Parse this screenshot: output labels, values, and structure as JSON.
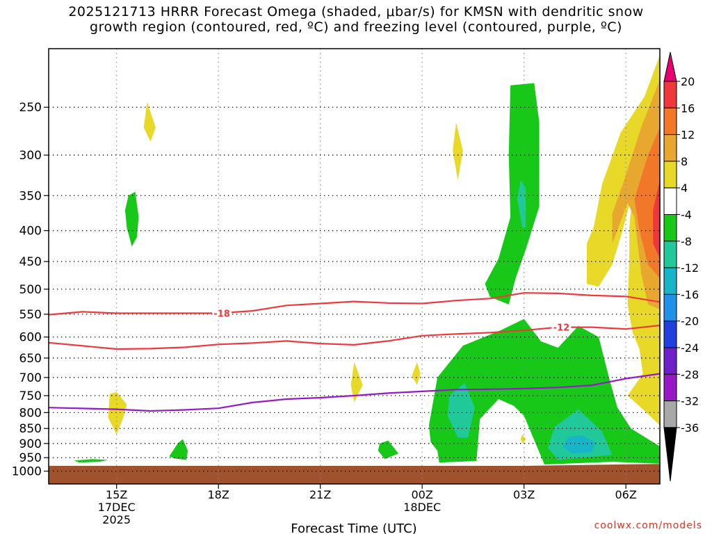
{
  "header": {
    "title_line1": "2025121713 HRRR Forecast Omega (shaded, μbar/s) for KMSN with dendritic snow",
    "title_line2": "growth region (contoured, red, ºC) and freezing level (contoured, purple, ºC)"
  },
  "footer": {
    "credit": "coolwx.com/models"
  },
  "chart_data": {
    "type": "time-height cross-section",
    "title": "2025121713 HRRR Forecast Omega (shaded, μbar/s) for KMSN with dendritic snow growth region (contoured, red, ºC) and freezing level (contoured, purple, ºC)",
    "xlabel": "Forecast Time (UTC)",
    "ylabel": "",
    "x_range_hours": [
      13,
      31
    ],
    "x_ticks": [
      {
        "hour": 15,
        "label": "15Z",
        "sub1": "17DEC",
        "sub2": "2025"
      },
      {
        "hour": 18,
        "label": "18Z",
        "sub1": "",
        "sub2": ""
      },
      {
        "hour": 21,
        "label": "21Z",
        "sub1": "",
        "sub2": ""
      },
      {
        "hour": 24,
        "label": "00Z",
        "sub1": "18DEC",
        "sub2": ""
      },
      {
        "hour": 27,
        "label": "03Z",
        "sub1": "",
        "sub2": ""
      },
      {
        "hour": 30,
        "label": "06Z",
        "sub1": "",
        "sub2": ""
      }
    ],
    "y_range_hpa": [
      1050,
      200
    ],
    "y_ticks": [
      250,
      300,
      350,
      400,
      450,
      500,
      550,
      600,
      650,
      700,
      750,
      800,
      850,
      900,
      950,
      1000
    ],
    "surface_hpa": [
      {
        "hour": 13,
        "p": 980
      },
      {
        "hour": 27,
        "p": 980
      },
      {
        "hour": 31,
        "p": 973
      }
    ],
    "colorbar": {
      "labels": [
        "20",
        "16",
        "12",
        "8",
        "4",
        "-4",
        "-8",
        "-12",
        "-16",
        "-20",
        "-24",
        "-28",
        "-32",
        "-36"
      ],
      "colors": [
        "#e8006e",
        "#f0383c",
        "#f07828",
        "#e8a830",
        "#e8d828",
        "#ffffff",
        "#18c818",
        "#20c89a",
        "#18b4c8",
        "#2090e8",
        "#2040e0",
        "#7020c8",
        "#9818c8",
        "#a8a8a8",
        "#000000"
      ]
    },
    "omega_regions": [
      {
        "name": "green-blob-a",
        "color": "#18c818",
        "pts": [
          [
            15.35,
            350
          ],
          [
            15.55,
            345
          ],
          [
            15.65,
            380
          ],
          [
            15.6,
            410
          ],
          [
            15.45,
            425
          ],
          [
            15.3,
            395
          ],
          [
            15.25,
            370
          ]
        ]
      },
      {
        "name": "yellow-blob-a",
        "color": "#e8d828",
        "pts": [
          [
            15.9,
            245
          ],
          [
            16.15,
            270
          ],
          [
            16.0,
            285
          ],
          [
            15.8,
            270
          ]
        ]
      },
      {
        "name": "yellow-blob-b",
        "color": "#e8d828",
        "pts": [
          [
            14.8,
            745
          ],
          [
            15.0,
            740
          ],
          [
            15.3,
            775
          ],
          [
            15.2,
            815
          ],
          [
            15.0,
            870
          ],
          [
            14.75,
            815
          ]
        ]
      },
      {
        "name": "green-blob-b",
        "color": "#18c818",
        "pts": [
          [
            13.75,
            960
          ],
          [
            14.3,
            955
          ],
          [
            14.75,
            958
          ],
          [
            14.5,
            965
          ],
          [
            13.9,
            968
          ]
        ]
      },
      {
        "name": "green-blob-c",
        "color": "#18c818",
        "pts": [
          [
            16.8,
            900
          ],
          [
            16.95,
            885
          ],
          [
            17.1,
            925
          ],
          [
            17.05,
            958
          ],
          [
            16.7,
            953
          ],
          [
            16.55,
            945
          ]
        ]
      },
      {
        "name": "yellow-blob-c",
        "color": "#e8d828",
        "pts": [
          [
            22.0,
            660
          ],
          [
            22.25,
            720
          ],
          [
            22.0,
            770
          ],
          [
            21.9,
            720
          ]
        ]
      },
      {
        "name": "green-blob-d",
        "color": "#18c818",
        "pts": [
          [
            22.75,
            900
          ],
          [
            23.0,
            890
          ],
          [
            23.3,
            935
          ],
          [
            22.9,
            955
          ],
          [
            22.7,
            925
          ]
        ]
      },
      {
        "name": "yellow-blob-d",
        "color": "#e8d828",
        "pts": [
          [
            23.85,
            660
          ],
          [
            23.95,
            690
          ],
          [
            23.85,
            720
          ],
          [
            23.7,
            695
          ]
        ]
      },
      {
        "name": "yellow-blob-e",
        "color": "#e8d828",
        "pts": [
          [
            25.0,
            265
          ],
          [
            25.2,
            295
          ],
          [
            25.05,
            330
          ],
          [
            24.9,
            295
          ]
        ]
      },
      {
        "name": "green-upper",
        "color": "#18c818",
        "pts": [
          [
            26.6,
            230
          ],
          [
            27.3,
            228
          ],
          [
            27.45,
            265
          ],
          [
            27.45,
            365
          ],
          [
            27.05,
            430
          ],
          [
            26.75,
            480
          ],
          [
            26.55,
            530
          ],
          [
            26.0,
            515
          ],
          [
            25.85,
            490
          ],
          [
            26.25,
            445
          ],
          [
            26.6,
            380
          ],
          [
            26.55,
            300
          ]
        ]
      },
      {
        "name": "teal-upper",
        "color": "#20c89a",
        "pts": [
          [
            26.9,
            330
          ],
          [
            27.05,
            340
          ],
          [
            27.05,
            395
          ],
          [
            26.95,
            395
          ],
          [
            26.8,
            355
          ]
        ]
      },
      {
        "name": "green-lower",
        "color": "#18c818",
        "pts": [
          [
            24.2,
            840
          ],
          [
            24.45,
            700
          ],
          [
            25.2,
            620
          ],
          [
            26.3,
            585
          ],
          [
            27.0,
            560
          ],
          [
            27.5,
            610
          ],
          [
            28.0,
            625
          ],
          [
            28.6,
            575
          ],
          [
            29.2,
            600
          ],
          [
            29.5,
            700
          ],
          [
            29.75,
            785
          ],
          [
            30.15,
            850
          ],
          [
            31.0,
            910
          ],
          [
            31.0,
            972
          ],
          [
            29.6,
            965
          ],
          [
            28.0,
            973
          ],
          [
            27.6,
            975
          ],
          [
            27.0,
            810
          ],
          [
            26.7,
            780
          ],
          [
            26.25,
            760
          ],
          [
            25.7,
            820
          ],
          [
            25.6,
            962
          ],
          [
            24.5,
            968
          ],
          [
            24.45,
            925
          ],
          [
            24.25,
            895
          ]
        ]
      },
      {
        "name": "teal-lower-a",
        "color": "#20c89a",
        "pts": [
          [
            24.8,
            750
          ],
          [
            25.25,
            715
          ],
          [
            25.55,
            785
          ],
          [
            25.35,
            880
          ],
          [
            25.05,
            880
          ],
          [
            24.75,
            810
          ]
        ]
      },
      {
        "name": "teal-lower-b",
        "color": "#20c89a",
        "pts": [
          [
            27.9,
            845
          ],
          [
            28.6,
            790
          ],
          [
            29.3,
            860
          ],
          [
            29.6,
            940
          ],
          [
            28.0,
            958
          ],
          [
            27.7,
            915
          ]
        ]
      },
      {
        "name": "blue-lower",
        "color": "#18b4c8",
        "pts": [
          [
            28.3,
            878
          ],
          [
            28.7,
            872
          ],
          [
            29.1,
            895
          ],
          [
            29.0,
            930
          ],
          [
            28.4,
            935
          ],
          [
            28.15,
            910
          ]
        ]
      },
      {
        "name": "yellow-tiny",
        "color": "#e8d828",
        "pts": [
          [
            26.95,
            870
          ],
          [
            27.05,
            885
          ],
          [
            26.97,
            902
          ],
          [
            26.9,
            885
          ]
        ]
      },
      {
        "name": "yellow-right",
        "color": "#e8d828",
        "pts": [
          [
            31.0,
            205
          ],
          [
            30.55,
            240
          ],
          [
            29.85,
            275
          ],
          [
            29.3,
            335
          ],
          [
            29.05,
            395
          ],
          [
            28.85,
            420
          ],
          [
            28.85,
            490
          ],
          [
            29.2,
            495
          ],
          [
            29.6,
            455
          ],
          [
            29.9,
            400
          ],
          [
            30.2,
            345
          ],
          [
            30.1,
            395
          ],
          [
            30.1,
            445
          ],
          [
            30.05,
            530
          ],
          [
            30.2,
            590
          ],
          [
            30.4,
            628
          ],
          [
            30.5,
            690
          ],
          [
            30.05,
            750
          ],
          [
            30.5,
            790
          ],
          [
            31.0,
            840
          ]
        ]
      },
      {
        "name": "gold-right",
        "color": "#e8a830",
        "pts": [
          [
            31.0,
            225
          ],
          [
            30.45,
            270
          ],
          [
            29.95,
            330
          ],
          [
            29.6,
            375
          ],
          [
            29.6,
            420
          ],
          [
            30.05,
            360
          ],
          [
            30.25,
            380
          ],
          [
            30.45,
            470
          ],
          [
            30.65,
            530
          ],
          [
            31.0,
            540
          ]
        ]
      },
      {
        "name": "orange-right",
        "color": "#f07828",
        "pts": [
          [
            31.0,
            270
          ],
          [
            30.65,
            300
          ],
          [
            30.25,
            355
          ],
          [
            30.4,
            400
          ],
          [
            30.65,
            455
          ],
          [
            31.0,
            480
          ]
        ]
      },
      {
        "name": "red-right",
        "color": "#f0383c",
        "pts": [
          [
            31.0,
            330
          ],
          [
            30.8,
            370
          ],
          [
            30.8,
            420
          ],
          [
            31.0,
            445
          ]
        ]
      }
    ],
    "contours": [
      {
        "name": "dendritic -18",
        "color": "#f0383c",
        "label": "-18",
        "label_at": [
          18.1,
          548
        ],
        "pts": [
          [
            13,
            551
          ],
          [
            14,
            545
          ],
          [
            15,
            548
          ],
          [
            17,
            548
          ],
          [
            18,
            548
          ],
          [
            19,
            543
          ],
          [
            20,
            532
          ],
          [
            21,
            528
          ],
          [
            22,
            524
          ],
          [
            23,
            527
          ],
          [
            24,
            528
          ],
          [
            25,
            522
          ],
          [
            26,
            518
          ],
          [
            27,
            507
          ],
          [
            28,
            508
          ],
          [
            29,
            512
          ],
          [
            30,
            514
          ],
          [
            31,
            525
          ]
        ]
      },
      {
        "name": "dendritic -12",
        "color": "#f0383c",
        "label": "-12",
        "label_at": [
          28.1,
          578
        ],
        "pts": [
          [
            13,
            613
          ],
          [
            15,
            628
          ],
          [
            16,
            627
          ],
          [
            17,
            624
          ],
          [
            18,
            617
          ],
          [
            19,
            614
          ],
          [
            20,
            609
          ],
          [
            21,
            615
          ],
          [
            22,
            618
          ],
          [
            23,
            609
          ],
          [
            24,
            597
          ],
          [
            25,
            593
          ],
          [
            26,
            590
          ],
          [
            27,
            585
          ],
          [
            28,
            578
          ],
          [
            29,
            578
          ],
          [
            30,
            582
          ],
          [
            31,
            574
          ]
        ]
      },
      {
        "name": "freezing level 0",
        "color": "#9818c8",
        "label": "",
        "label_at": null,
        "pts": [
          [
            13,
            785
          ],
          [
            15,
            790
          ],
          [
            16,
            795
          ],
          [
            17,
            792
          ],
          [
            18,
            787
          ],
          [
            19,
            770
          ],
          [
            20,
            760
          ],
          [
            21,
            756
          ],
          [
            22,
            750
          ],
          [
            23,
            743
          ],
          [
            24,
            738
          ],
          [
            25,
            733
          ],
          [
            26,
            732
          ],
          [
            27,
            730
          ],
          [
            28,
            727
          ],
          [
            29,
            721
          ],
          [
            30,
            703
          ],
          [
            31,
            690
          ]
        ]
      }
    ]
  }
}
